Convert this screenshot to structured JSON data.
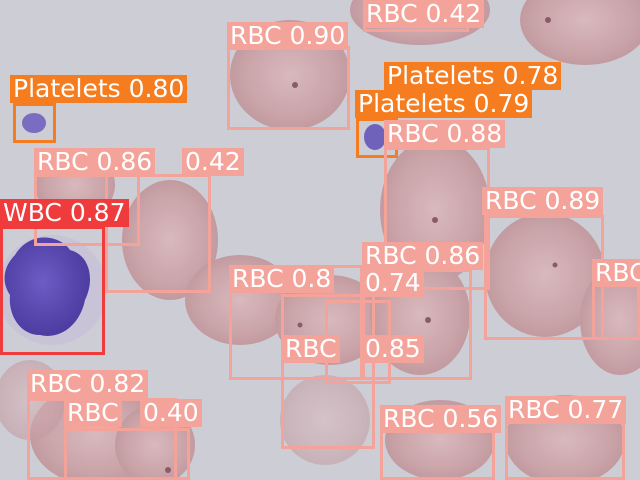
{
  "image": {
    "description_colors": {
      "background": "#cfcfd6",
      "rbc": "#c9a8ad",
      "wbc": "#5a4bb0",
      "platelet": "#7266b8"
    }
  },
  "class_colors": {
    "RBC": "#f4a39a",
    "WBC": "#ef3b3b",
    "Platelets": "#f57c1f"
  },
  "detections": [
    {
      "label": "RBC 0.42"
    },
    {
      "label": "RBC 0.90"
    },
    {
      "label": "Platelets 0.80"
    },
    {
      "label": "Platelets 0.78"
    },
    {
      "label": "Platelets 0.79"
    },
    {
      "label": "RBC 0.88"
    },
    {
      "label": "RBC 0.86"
    },
    {
      "label": "0.42"
    },
    {
      "label": "WBC 0.87"
    },
    {
      "label": "RBC 0.89"
    },
    {
      "label": "RBC 0.86"
    },
    {
      "label": "RBC"
    },
    {
      "label": "RBC 0.8"
    },
    {
      "label": "0.74"
    },
    {
      "label": "RBC"
    },
    {
      "label": "0.85"
    },
    {
      "label": "RBC 0.82"
    },
    {
      "label": "RBC"
    },
    {
      "label": "0.40"
    },
    {
      "label": "RBC 0.56"
    },
    {
      "label": "RBC 0.77"
    }
  ]
}
